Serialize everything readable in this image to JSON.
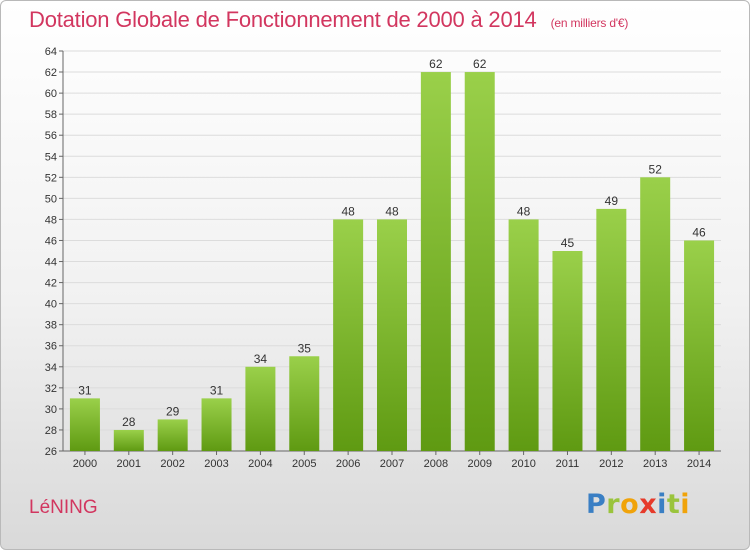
{
  "header": {
    "title": "Dotation Globale de Fonctionnement de 2000 à 2014",
    "subtitle": "(en milliers d'€)"
  },
  "footer": {
    "commune": "LéNING",
    "logo": "Proxiti"
  },
  "colors": {
    "bar_top": "#9ad04a",
    "bar_bottom": "#5f9a12",
    "title": "#d2365f"
  },
  "chart_data": {
    "type": "bar",
    "title": "Dotation Globale de Fonctionnement de 2000 à 2014",
    "subtitle": "(en milliers d'€)",
    "categories": [
      "2000",
      "2001",
      "2002",
      "2003",
      "2004",
      "2005",
      "2006",
      "2007",
      "2008",
      "2009",
      "2010",
      "2011",
      "2012",
      "2013",
      "2014"
    ],
    "values": [
      31,
      28,
      29,
      31,
      34,
      35,
      48,
      48,
      62,
      62,
      48,
      45,
      49,
      52,
      46
    ],
    "ylim": [
      26,
      64
    ],
    "ytick_step": 2,
    "grid": true,
    "data_labels": true
  }
}
